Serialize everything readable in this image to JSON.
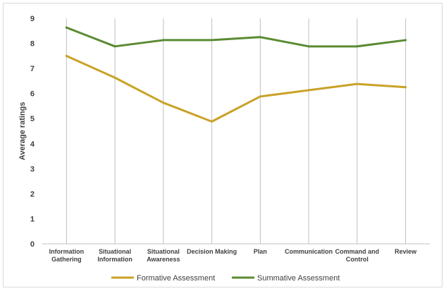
{
  "chart_data": {
    "type": "line",
    "title": "",
    "xlabel": "",
    "ylabel": "Average ratings",
    "ylim": [
      0,
      9
    ],
    "yticks": [
      0,
      1,
      2,
      3,
      4,
      5,
      6,
      7,
      8,
      9
    ],
    "grid": {
      "vertical": true,
      "horizontal": false
    },
    "legend_position": "bottom",
    "categories": [
      [
        "Information",
        "Gathering"
      ],
      [
        "Situational",
        "Information"
      ],
      [
        "Situational",
        "Awareness"
      ],
      [
        "Decision Making"
      ],
      [
        "Plan"
      ],
      [
        "Communication"
      ],
      [
        "Command and",
        "Control"
      ],
      [
        "Review"
      ]
    ],
    "series": [
      {
        "name": "Formative Assessment",
        "color": "#c9a227",
        "values": [
          7.5,
          6.63,
          5.63,
          4.88,
          5.88,
          6.13,
          6.38,
          6.25
        ]
      },
      {
        "name": "Summative Assessment",
        "color": "#5a8a32",
        "values": [
          8.63,
          7.88,
          8.13,
          8.13,
          8.25,
          7.88,
          7.88,
          8.13
        ]
      }
    ]
  }
}
